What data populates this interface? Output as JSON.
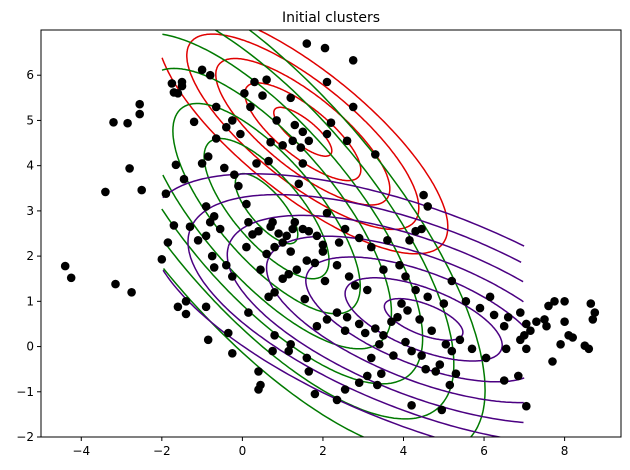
{
  "chart_data": {
    "type": "scatter",
    "title": "Initial clusters",
    "xlabel": "",
    "ylabel": "",
    "xlim": [
      -5,
      9.4
    ],
    "ylim": [
      -2,
      7
    ],
    "xticks": [
      -4,
      -2,
      0,
      2,
      4,
      6,
      8
    ],
    "yticks": [
      -2,
      -1,
      0,
      1,
      2,
      3,
      4,
      5,
      6
    ],
    "grid": false,
    "legend": "none",
    "point_color": "#000000",
    "points": [
      [
        -4.4,
        1.78
      ],
      [
        -4.25,
        1.52
      ],
      [
        -3.15,
        1.38
      ],
      [
        -2.75,
        1.2
      ],
      [
        -2.0,
        1.93
      ],
      [
        -3.4,
        3.42
      ],
      [
        -2.8,
        3.94
      ],
      [
        -2.5,
        3.46
      ],
      [
        -3.2,
        4.96
      ],
      [
        -2.85,
        4.94
      ],
      [
        -2.55,
        5.14
      ],
      [
        -2.55,
        5.36
      ],
      [
        -1.75,
        5.82
      ],
      [
        -1.6,
        5.6
      ],
      [
        -1.5,
        5.76
      ],
      [
        -1.7,
        5.62
      ],
      [
        -1.5,
        5.85
      ],
      [
        -1.2,
        4.97
      ],
      [
        -1.0,
        6.12
      ],
      [
        -0.8,
        6.0
      ],
      [
        -0.65,
        5.3
      ],
      [
        -0.4,
        4.85
      ],
      [
        -0.25,
        5.0
      ],
      [
        -0.05,
        4.7
      ],
      [
        0.05,
        5.6
      ],
      [
        0.2,
        5.3
      ],
      [
        0.3,
        5.85
      ],
      [
        0.5,
        5.55
      ],
      [
        0.6,
        5.9
      ],
      [
        0.85,
        5.0
      ],
      [
        1.2,
        5.5
      ],
      [
        1.6,
        6.7
      ],
      [
        2.05,
        6.6
      ],
      [
        2.1,
        5.85
      ],
      [
        2.75,
        6.33
      ],
      [
        2.75,
        5.3
      ],
      [
        1.3,
        4.9
      ],
      [
        1.5,
        4.75
      ],
      [
        1.25,
        4.55
      ],
      [
        1.0,
        4.45
      ],
      [
        0.7,
        4.52
      ],
      [
        -1.9,
        3.38
      ],
      [
        -1.65,
        4.02
      ],
      [
        -1.45,
        3.7
      ],
      [
        -1.0,
        4.05
      ],
      [
        -0.85,
        4.2
      ],
      [
        -0.65,
        4.6
      ],
      [
        -0.45,
        3.95
      ],
      [
        -0.2,
        3.8
      ],
      [
        -0.1,
        3.55
      ],
      [
        0.35,
        4.05
      ],
      [
        0.65,
        4.1
      ],
      [
        1.45,
        4.4
      ],
      [
        1.5,
        4.05
      ],
      [
        1.65,
        4.55
      ],
      [
        2.1,
        4.7
      ],
      [
        2.2,
        4.95
      ],
      [
        1.4,
        3.6
      ],
      [
        2.6,
        4.55
      ],
      [
        3.3,
        4.25
      ],
      [
        4.5,
        3.35
      ],
      [
        4.6,
        3.1
      ],
      [
        -1.7,
        2.68
      ],
      [
        -1.85,
        2.3
      ],
      [
        -1.3,
        2.65
      ],
      [
        -0.9,
        3.1
      ],
      [
        -0.7,
        2.88
      ],
      [
        -0.8,
        2.75
      ],
      [
        -0.55,
        2.6
      ],
      [
        -1.1,
        2.35
      ],
      [
        -0.9,
        2.45
      ],
      [
        -0.75,
        2.0
      ],
      [
        -0.7,
        1.75
      ],
      [
        -0.4,
        1.8
      ],
      [
        -0.25,
        1.55
      ],
      [
        0.1,
        2.2
      ],
      [
        0.15,
        2.75
      ],
      [
        0.1,
        3.15
      ],
      [
        0.25,
        2.48
      ],
      [
        0.4,
        2.55
      ],
      [
        0.6,
        2.05
      ],
      [
        0.8,
        2.2
      ],
      [
        0.9,
        2.5
      ],
      [
        1.0,
        2.3
      ],
      [
        1.1,
        2.45
      ],
      [
        1.2,
        2.1
      ],
      [
        1.3,
        2.75
      ],
      [
        1.5,
        2.6
      ],
      [
        1.65,
        2.55
      ],
      [
        1.85,
        2.45
      ],
      [
        2.0,
        2.1
      ],
      [
        2.4,
        2.3
      ],
      [
        2.55,
        2.6
      ],
      [
        2.1,
        2.95
      ],
      [
        2.9,
        2.4
      ],
      [
        3.2,
        2.2
      ],
      [
        3.6,
        2.35
      ],
      [
        4.15,
        2.35
      ],
      [
        4.3,
        2.55
      ],
      [
        4.45,
        2.6
      ],
      [
        0.7,
        2.65
      ],
      [
        0.75,
        2.75
      ],
      [
        1.25,
        2.6
      ],
      [
        0.45,
        1.7
      ],
      [
        0.65,
        1.1
      ],
      [
        0.8,
        1.2
      ],
      [
        1.0,
        1.5
      ],
      [
        1.15,
        1.6
      ],
      [
        1.35,
        1.7
      ],
      [
        1.6,
        1.9
      ],
      [
        1.8,
        1.85
      ],
      [
        2.0,
        2.25
      ],
      [
        2.05,
        1.45
      ],
      [
        2.35,
        1.8
      ],
      [
        2.65,
        1.55
      ],
      [
        2.8,
        1.35
      ],
      [
        3.1,
        1.25
      ],
      [
        3.5,
        1.7
      ],
      [
        3.9,
        1.8
      ],
      [
        4.05,
        1.55
      ],
      [
        -1.6,
        0.88
      ],
      [
        -1.4,
        1.0
      ],
      [
        -0.9,
        0.88
      ],
      [
        -1.4,
        0.72
      ],
      [
        -0.85,
        0.15
      ],
      [
        -0.35,
        0.3
      ],
      [
        0.15,
        0.75
      ],
      [
        0.8,
        0.25
      ],
      [
        1.2,
        0.05
      ],
      [
        1.55,
        1.05
      ],
      [
        1.85,
        0.45
      ],
      [
        2.1,
        0.6
      ],
      [
        2.35,
        0.75
      ],
      [
        2.6,
        0.65
      ],
      [
        2.55,
        0.35
      ],
      [
        2.9,
        0.5
      ],
      [
        3.05,
        0.3
      ],
      [
        3.3,
        0.4
      ],
      [
        3.5,
        0.25
      ],
      [
        3.7,
        0.55
      ],
      [
        3.85,
        0.65
      ],
      [
        3.95,
        0.95
      ],
      [
        4.1,
        0.8
      ],
      [
        4.4,
        0.6
      ],
      [
        4.7,
        0.35
      ],
      [
        4.3,
        1.25
      ],
      [
        4.6,
        1.1
      ],
      [
        5.0,
        0.95
      ],
      [
        5.2,
        1.45
      ],
      [
        5.55,
        1.0
      ],
      [
        5.9,
        0.85
      ],
      [
        6.15,
        1.1
      ],
      [
        6.25,
        0.7
      ],
      [
        6.5,
        0.45
      ],
      [
        6.6,
        0.65
      ],
      [
        6.9,
        0.75
      ],
      [
        7.05,
        0.5
      ],
      [
        7.15,
        0.35
      ],
      [
        7.3,
        0.55
      ],
      [
        7.5,
        0.6
      ],
      [
        7.6,
        0.9
      ],
      [
        7.75,
        1.0
      ],
      [
        8.0,
        1.0
      ],
      [
        8.2,
        0.2
      ],
      [
        7.55,
        0.45
      ],
      [
        8.6,
        -0.05
      ],
      [
        8.7,
        0.6
      ],
      [
        8.65,
        0.95
      ],
      [
        8.75,
        0.75
      ],
      [
        8.5,
        0.02
      ],
      [
        7.0,
        0.25
      ],
      [
        7.05,
        -0.05
      ],
      [
        6.9,
        0.15
      ],
      [
        6.55,
        -0.05
      ],
      [
        6.05,
        -0.25
      ],
      [
        5.7,
        -0.05
      ],
      [
        5.4,
        0.15
      ],
      [
        5.2,
        -0.1
      ],
      [
        5.05,
        0.05
      ],
      [
        4.9,
        -0.4
      ],
      [
        4.8,
        -0.55
      ],
      [
        4.55,
        -0.5
      ],
      [
        4.45,
        -0.2
      ],
      [
        4.2,
        -0.1
      ],
      [
        4.05,
        0.1
      ],
      [
        3.75,
        -0.2
      ],
      [
        3.4,
        0.05
      ],
      [
        3.2,
        -0.25
      ],
      [
        3.1,
        -0.65
      ],
      [
        2.9,
        -0.8
      ],
      [
        2.55,
        -0.95
      ],
      [
        2.35,
        -1.18
      ],
      [
        1.8,
        -1.05
      ],
      [
        1.65,
        -0.55
      ],
      [
        1.6,
        -0.25
      ],
      [
        1.15,
        -0.1
      ],
      [
        0.75,
        -0.1
      ],
      [
        0.4,
        -0.55
      ],
      [
        0.45,
        -0.85
      ],
      [
        -0.25,
        -0.15
      ],
      [
        0.4,
        -0.95
      ],
      [
        3.35,
        -0.85
      ],
      [
        3.45,
        -0.6
      ],
      [
        4.2,
        -1.3
      ],
      [
        4.95,
        -1.4
      ],
      [
        5.3,
        -0.6
      ],
      [
        5.15,
        -0.85
      ],
      [
        6.5,
        -0.75
      ],
      [
        7.05,
        -1.32
      ],
      [
        6.85,
        -0.65
      ],
      [
        7.7,
        -0.33
      ],
      [
        7.9,
        0.05
      ],
      [
        8.1,
        0.25
      ],
      [
        8.0,
        0.55
      ]
    ],
    "clusters": [
      {
        "color": "#e00000",
        "center": [
          1.5,
          4.75
        ],
        "sigma": [
          1.2,
          0.9
        ],
        "correlation": -0.78,
        "levels": [
          0.6,
          1.2,
          1.8,
          2.4,
          3.0
        ]
      },
      {
        "color": "#007a00",
        "center": [
          0.6,
          3.05
        ],
        "sigma": [
          1.55,
          1.55
        ],
        "correlation": -0.74,
        "levels": [
          0.5,
          1.0,
          1.5,
          2.0,
          2.5,
          3.0,
          3.5
        ]
      },
      {
        "color": "#4b0082",
        "center": [
          4.5,
          0.6
        ],
        "sigma": [
          1.95,
          0.92
        ],
        "correlation": -0.62,
        "levels": [
          0.5,
          1.0,
          1.5,
          2.0,
          2.5,
          3.0,
          3.5
        ]
      }
    ],
    "contour_range_x": [
      -2,
      7
    ]
  }
}
